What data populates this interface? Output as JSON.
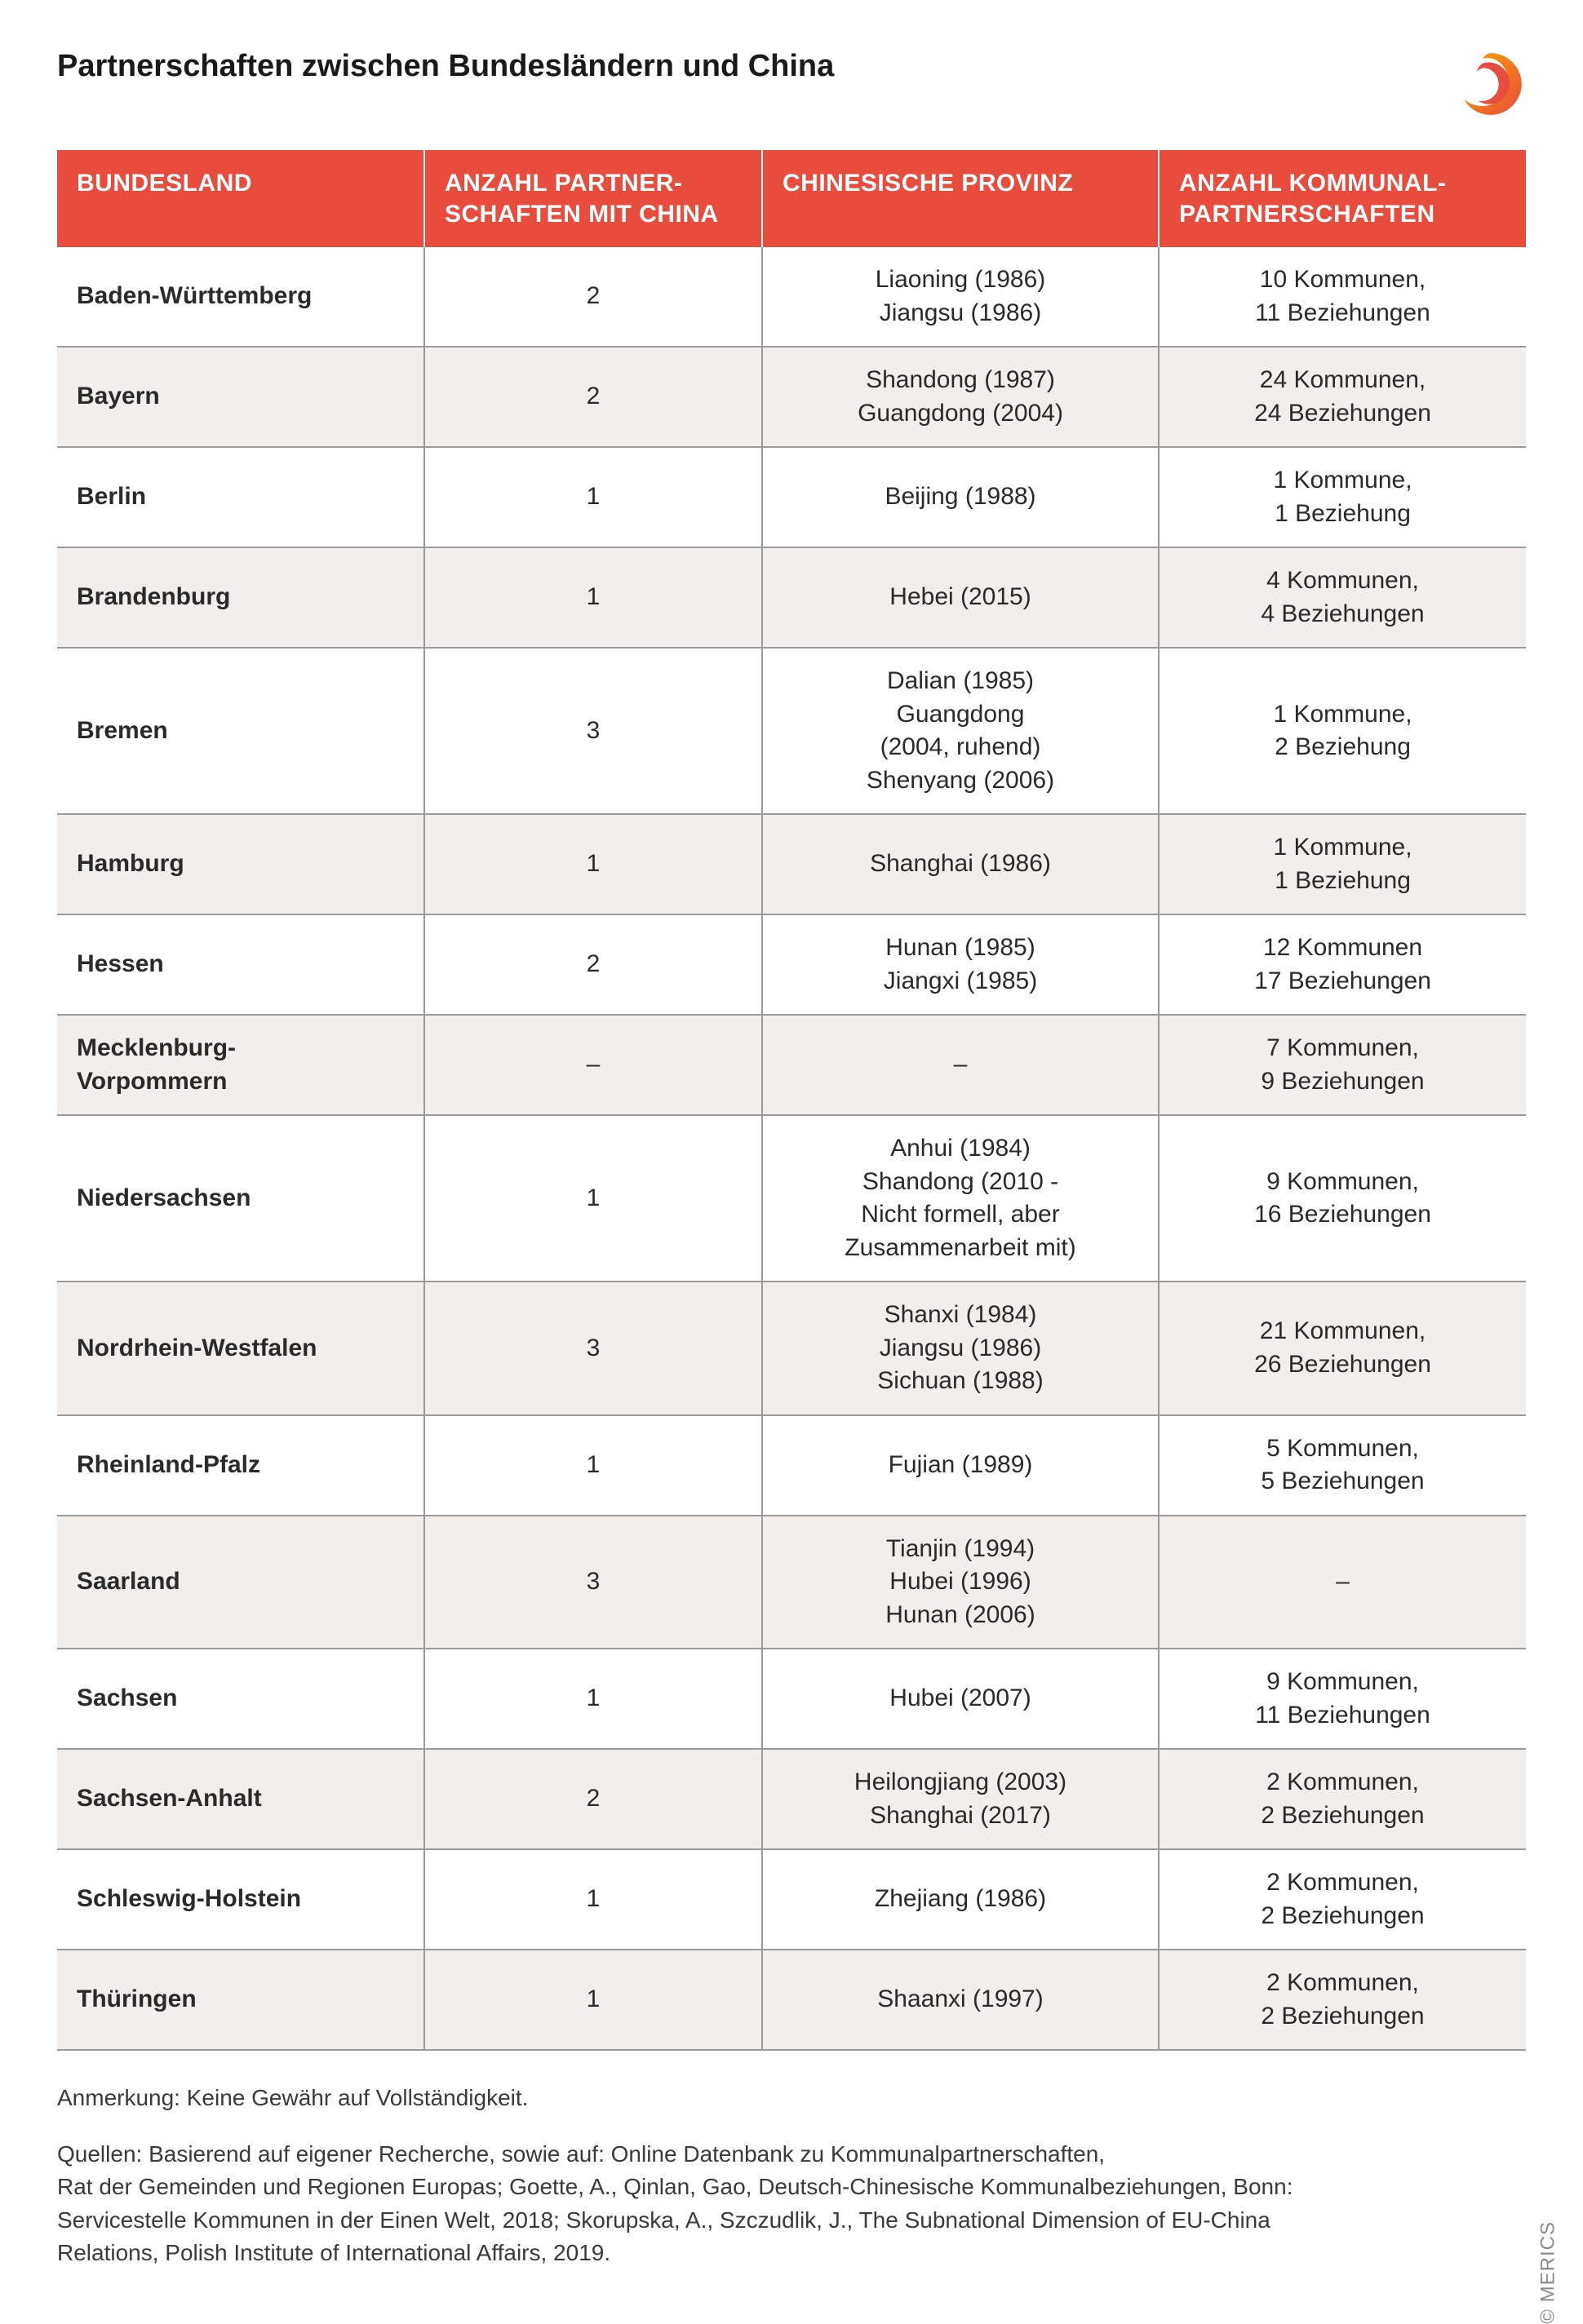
{
  "title": "Partnerschaften zwischen Bundesländern und China",
  "columns": [
    "BUNDESLAND",
    "ANZAHL PARTNER-\nSCHAFTEN MIT CHINA",
    "CHINESISCHE PROVINZ",
    "ANZAHL KOMMUNAL-\nPARTNERSCHAFTEN"
  ],
  "rows": [
    {
      "land": "Baden-Württemberg",
      "count": "2",
      "provinces": "Liaoning (1986)\nJiangsu (1986)",
      "kommunal": "10 Kommunen,\n11 Beziehungen"
    },
    {
      "land": "Bayern",
      "count": "2",
      "provinces": "Shandong (1987)\nGuangdong (2004)",
      "kommunal": "24 Kommunen,\n24 Beziehungen"
    },
    {
      "land": "Berlin",
      "count": "1",
      "provinces": "Beijing (1988)",
      "kommunal": "1 Kommune,\n1 Beziehung"
    },
    {
      "land": "Brandenburg",
      "count": "1",
      "provinces": "Hebei (2015)",
      "kommunal": "4 Kommunen,\n4 Beziehungen"
    },
    {
      "land": "Bremen",
      "count": "3",
      "provinces": "Dalian (1985)\nGuangdong\n(2004, ruhend)\nShenyang (2006)",
      "kommunal": "1 Kommune,\n2 Beziehung"
    },
    {
      "land": "Hamburg",
      "count": "1",
      "provinces": "Shanghai (1986)",
      "kommunal": "1 Kommune,\n1 Beziehung"
    },
    {
      "land": "Hessen",
      "count": "2",
      "provinces": "Hunan (1985)\nJiangxi (1985)",
      "kommunal": "12 Kommunen\n17 Beziehungen"
    },
    {
      "land": "Mecklenburg-\nVorpommern",
      "count": "–",
      "provinces": "–",
      "kommunal": "7 Kommunen,\n9 Beziehungen"
    },
    {
      "land": "Niedersachsen",
      "count": "1",
      "provinces": "Anhui (1984)\nShandong (2010 -\nNicht formell, aber\nZusammenarbeit mit)",
      "kommunal": "9 Kommunen,\n16 Beziehungen"
    },
    {
      "land": "Nordrhein-Westfalen",
      "count": "3",
      "provinces": "Shanxi (1984)\nJiangsu (1986)\nSichuan (1988)",
      "kommunal": "21 Kommunen,\n26 Beziehungen"
    },
    {
      "land": "Rheinland-Pfalz",
      "count": "1",
      "provinces": "Fujian (1989)",
      "kommunal": "5 Kommunen,\n5 Beziehungen"
    },
    {
      "land": "Saarland",
      "count": "3",
      "provinces": "Tianjin (1994)\nHubei (1996)\nHunan (2006)",
      "kommunal": "–"
    },
    {
      "land": "Sachsen",
      "count": "1",
      "provinces": "Hubei (2007)",
      "kommunal": "9 Kommunen,\n11 Beziehungen"
    },
    {
      "land": "Sachsen-Anhalt",
      "count": "2",
      "provinces": "Heilongjiang (2003)\nShanghai (2017)",
      "kommunal": "2 Kommunen,\n2 Beziehungen"
    },
    {
      "land": "Schleswig-Holstein",
      "count": "1",
      "provinces": "Zhejiang (1986)",
      "kommunal": "2 Kommunen,\n2 Beziehungen"
    },
    {
      "land": "Thüringen",
      "count": "1",
      "provinces": "Shaanxi (1997)",
      "kommunal": "2 Kommunen,\n2 Beziehungen"
    }
  ],
  "note": "Anmerkung: Keine Gewähr auf Vollständigkeit.",
  "sources": "Quellen: Basierend auf eigener Recherche, sowie auf: Online Datenbank zu Kommunalpartnerschaften,\nRat der Gemeinden und Regionen Europas; Goette, A., Qinlan, Gao, Deutsch-Chinesische Kommunalbeziehungen, Bonn:\nServicestelle Kommunen in der Einen Welt, 2018; Skorupska, A., Szczudlik, J., The Subnational Dimension of EU-China\nRelations, Polish Institute of International Affairs, 2019.",
  "copyright": "© MERICS",
  "colors": {
    "header_bg": "#e84c3d",
    "header_text": "#ffffff",
    "row_alt_bg": "#f1eeeb",
    "border": "#9a9a9a",
    "text": "#2a2a2a",
    "logo_red": "#e84c3d",
    "logo_orange": "#f7a600"
  }
}
